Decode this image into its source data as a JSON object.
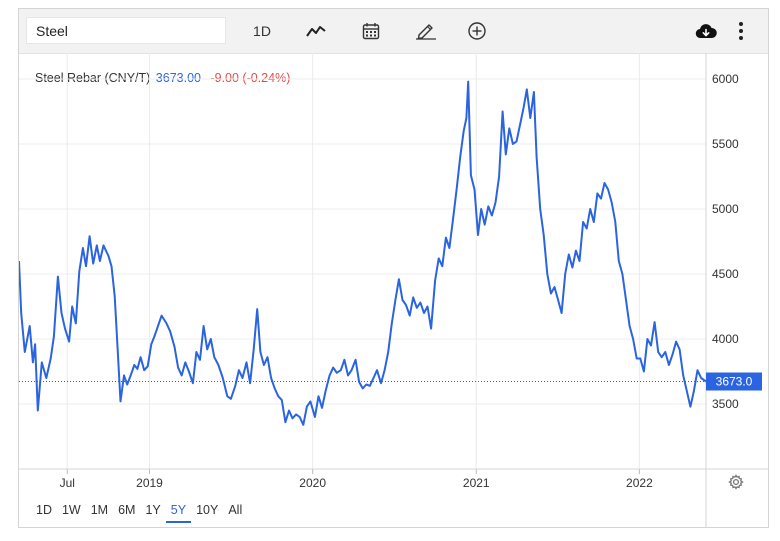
{
  "toolbar": {
    "search_value": "Steel",
    "interval_label": "1D",
    "icons": [
      "line-chart-icon",
      "calendar-icon",
      "draw-pencil-icon",
      "add-compare-icon",
      "download-cloud-icon",
      "more-vertical-icon"
    ]
  },
  "legend": {
    "name": "Steel Rebar (CNY/T)",
    "price": "3673.00",
    "change": "-9.00 (-0.24%)"
  },
  "price_tag": "3673.0",
  "ranges": {
    "items": [
      "1D",
      "1W",
      "1M",
      "6M",
      "1Y",
      "5Y",
      "10Y",
      "All"
    ],
    "selected": "5Y"
  },
  "colors": {
    "line": "#2a64e0",
    "accent": "#2a64e0",
    "negative": "#e04a4a",
    "grid": "#ececec"
  },
  "chart_data": {
    "type": "line",
    "title": "Steel Rebar (CNY/T)",
    "xlabel": "",
    "ylabel": "",
    "grid": true,
    "legend": "top-left",
    "y_axis_position": "right",
    "xlim": [
      "2018-03-15",
      "2022-05-30"
    ],
    "ylim": [
      3000,
      6200
    ],
    "y_ticks": [
      3500,
      4000,
      4500,
      5000,
      5500,
      6000
    ],
    "x_ticks": [
      {
        "date": "2018-07-01",
        "label": "Jul"
      },
      {
        "date": "2019-01-01",
        "label": "2019"
      },
      {
        "date": "2020-01-01",
        "label": "2020"
      },
      {
        "date": "2021-01-01",
        "label": "2021"
      },
      {
        "date": "2022-01-01",
        "label": "2022"
      }
    ],
    "last_value": 3673.0,
    "series": [
      {
        "values": [
          [
            "2018-03-15",
            4600
          ],
          [
            "2018-03-20",
            4200
          ],
          [
            "2018-03-28",
            3900
          ],
          [
            "2018-04-08",
            4100
          ],
          [
            "2018-04-15",
            3820
          ],
          [
            "2018-04-20",
            3960
          ],
          [
            "2018-04-26",
            3450
          ],
          [
            "2018-05-05",
            3820
          ],
          [
            "2018-05-15",
            3700
          ],
          [
            "2018-05-25",
            3850
          ],
          [
            "2018-06-01",
            4020
          ],
          [
            "2018-06-10",
            4480
          ],
          [
            "2018-06-18",
            4200
          ],
          [
            "2018-06-26",
            4080
          ],
          [
            "2018-07-05",
            3980
          ],
          [
            "2018-07-12",
            4250
          ],
          [
            "2018-07-20",
            4120
          ],
          [
            "2018-07-28",
            4520
          ],
          [
            "2018-08-05",
            4700
          ],
          [
            "2018-08-12",
            4560
          ],
          [
            "2018-08-20",
            4790
          ],
          [
            "2018-08-28",
            4580
          ],
          [
            "2018-09-05",
            4720
          ],
          [
            "2018-09-12",
            4600
          ],
          [
            "2018-09-20",
            4720
          ],
          [
            "2018-10-01",
            4640
          ],
          [
            "2018-10-08",
            4560
          ],
          [
            "2018-10-15",
            4330
          ],
          [
            "2018-10-22",
            3900
          ],
          [
            "2018-10-28",
            3520
          ],
          [
            "2018-11-05",
            3720
          ],
          [
            "2018-11-12",
            3650
          ],
          [
            "2018-11-20",
            3720
          ],
          [
            "2018-11-28",
            3800
          ],
          [
            "2018-12-05",
            3770
          ],
          [
            "2018-12-12",
            3860
          ],
          [
            "2018-12-20",
            3760
          ],
          [
            "2018-12-28",
            3790
          ],
          [
            "2019-01-05",
            3960
          ],
          [
            "2019-01-12",
            4020
          ],
          [
            "2019-01-20",
            4100
          ],
          [
            "2019-01-28",
            4180
          ],
          [
            "2019-02-08",
            4120
          ],
          [
            "2019-02-16",
            4060
          ],
          [
            "2019-02-26",
            3940
          ],
          [
            "2019-03-06",
            3780
          ],
          [
            "2019-03-14",
            3720
          ],
          [
            "2019-03-22",
            3820
          ],
          [
            "2019-03-30",
            3750
          ],
          [
            "2019-04-08",
            3660
          ],
          [
            "2019-04-16",
            3900
          ],
          [
            "2019-04-24",
            3840
          ],
          [
            "2019-05-02",
            4100
          ],
          [
            "2019-05-10",
            3920
          ],
          [
            "2019-05-18",
            4000
          ],
          [
            "2019-05-26",
            3860
          ],
          [
            "2019-06-04",
            3800
          ],
          [
            "2019-06-14",
            3700
          ],
          [
            "2019-06-24",
            3560
          ],
          [
            "2019-07-02",
            3540
          ],
          [
            "2019-07-12",
            3640
          ],
          [
            "2019-07-20",
            3760
          ],
          [
            "2019-07-28",
            3700
          ],
          [
            "2019-08-06",
            3820
          ],
          [
            "2019-08-14",
            3660
          ],
          [
            "2019-08-22",
            3920
          ],
          [
            "2019-08-30",
            4230
          ],
          [
            "2019-09-06",
            3900
          ],
          [
            "2019-09-14",
            3800
          ],
          [
            "2019-09-22",
            3860
          ],
          [
            "2019-09-30",
            3700
          ],
          [
            "2019-10-08",
            3620
          ],
          [
            "2019-10-16",
            3560
          ],
          [
            "2019-10-24",
            3530
          ],
          [
            "2019-11-01",
            3360
          ],
          [
            "2019-11-09",
            3450
          ],
          [
            "2019-11-17",
            3390
          ],
          [
            "2019-11-25",
            3420
          ],
          [
            "2019-12-03",
            3400
          ],
          [
            "2019-12-11",
            3340
          ],
          [
            "2019-12-19",
            3480
          ],
          [
            "2019-12-27",
            3520
          ],
          [
            "2020-01-06",
            3400
          ],
          [
            "2020-01-14",
            3560
          ],
          [
            "2020-01-22",
            3470
          ],
          [
            "2020-01-30",
            3600
          ],
          [
            "2020-02-08",
            3720
          ],
          [
            "2020-02-16",
            3780
          ],
          [
            "2020-02-24",
            3740
          ],
          [
            "2020-03-04",
            3760
          ],
          [
            "2020-03-12",
            3840
          ],
          [
            "2020-03-20",
            3720
          ],
          [
            "2020-03-28",
            3760
          ],
          [
            "2020-04-06",
            3840
          ],
          [
            "2020-04-14",
            3670
          ],
          [
            "2020-04-22",
            3620
          ],
          [
            "2020-04-30",
            3650
          ],
          [
            "2020-05-08",
            3640
          ],
          [
            "2020-05-16",
            3700
          ],
          [
            "2020-05-24",
            3760
          ],
          [
            "2020-06-02",
            3660
          ],
          [
            "2020-06-10",
            3760
          ],
          [
            "2020-06-18",
            3900
          ],
          [
            "2020-06-26",
            4120
          ],
          [
            "2020-07-04",
            4300
          ],
          [
            "2020-07-12",
            4460
          ],
          [
            "2020-07-20",
            4300
          ],
          [
            "2020-07-28",
            4260
          ],
          [
            "2020-08-05",
            4180
          ],
          [
            "2020-08-13",
            4320
          ],
          [
            "2020-08-21",
            4240
          ],
          [
            "2020-08-29",
            4280
          ],
          [
            "2020-09-06",
            4200
          ],
          [
            "2020-09-14",
            4250
          ],
          [
            "2020-09-22",
            4080
          ],
          [
            "2020-10-01",
            4450
          ],
          [
            "2020-10-09",
            4620
          ],
          [
            "2020-10-17",
            4560
          ],
          [
            "2020-10-25",
            4780
          ],
          [
            "2020-11-02",
            4700
          ],
          [
            "2020-11-10",
            4920
          ],
          [
            "2020-11-18",
            5150
          ],
          [
            "2020-11-26",
            5400
          ],
          [
            "2020-12-04",
            5600
          ],
          [
            "2020-12-10",
            5700
          ],
          [
            "2020-12-14",
            5980
          ],
          [
            "2020-12-20",
            5260
          ],
          [
            "2020-12-28",
            5150
          ],
          [
            "2021-01-05",
            4800
          ],
          [
            "2021-01-12",
            5000
          ],
          [
            "2021-01-20",
            4880
          ],
          [
            "2021-01-28",
            5020
          ],
          [
            "2021-02-05",
            4950
          ],
          [
            "2021-02-13",
            5050
          ],
          [
            "2021-02-21",
            5250
          ],
          [
            "2021-03-01",
            5750
          ],
          [
            "2021-03-08",
            5420
          ],
          [
            "2021-03-16",
            5620
          ],
          [
            "2021-03-24",
            5500
          ],
          [
            "2021-04-01",
            5520
          ],
          [
            "2021-04-09",
            5650
          ],
          [
            "2021-04-17",
            5780
          ],
          [
            "2021-04-24",
            5920
          ],
          [
            "2021-05-02",
            5700
          ],
          [
            "2021-05-10",
            5900
          ],
          [
            "2021-05-16",
            5400
          ],
          [
            "2021-05-24",
            5000
          ],
          [
            "2021-06-01",
            4800
          ],
          [
            "2021-06-09",
            4500
          ],
          [
            "2021-06-17",
            4350
          ],
          [
            "2021-06-25",
            4400
          ],
          [
            "2021-07-03",
            4300
          ],
          [
            "2021-07-11",
            4200
          ],
          [
            "2021-07-19",
            4500
          ],
          [
            "2021-07-27",
            4650
          ],
          [
            "2021-08-04",
            4550
          ],
          [
            "2021-08-12",
            4680
          ],
          [
            "2021-08-20",
            4600
          ],
          [
            "2021-08-28",
            4900
          ],
          [
            "2021-09-05",
            4850
          ],
          [
            "2021-09-13",
            5000
          ],
          [
            "2021-09-21",
            4900
          ],
          [
            "2021-09-29",
            5120
          ],
          [
            "2021-10-07",
            5080
          ],
          [
            "2021-10-15",
            5200
          ],
          [
            "2021-10-23",
            5150
          ],
          [
            "2021-10-31",
            5050
          ],
          [
            "2021-11-08",
            4900
          ],
          [
            "2021-11-16",
            4600
          ],
          [
            "2021-11-24",
            4500
          ],
          [
            "2021-12-02",
            4300
          ],
          [
            "2021-12-10",
            4100
          ],
          [
            "2021-12-18",
            4000
          ],
          [
            "2021-12-26",
            3850
          ],
          [
            "2022-01-03",
            3850
          ],
          [
            "2022-01-11",
            3750
          ],
          [
            "2022-01-19",
            4000
          ],
          [
            "2022-01-27",
            3950
          ],
          [
            "2022-02-04",
            4130
          ],
          [
            "2022-02-12",
            3900
          ],
          [
            "2022-02-20",
            3860
          ],
          [
            "2022-02-28",
            3900
          ],
          [
            "2022-03-08",
            3800
          ],
          [
            "2022-03-16",
            3880
          ],
          [
            "2022-03-24",
            3980
          ],
          [
            "2022-04-01",
            3920
          ],
          [
            "2022-04-09",
            3720
          ],
          [
            "2022-04-17",
            3600
          ],
          [
            "2022-04-25",
            3480
          ],
          [
            "2022-05-03",
            3600
          ],
          [
            "2022-05-11",
            3760
          ],
          [
            "2022-05-19",
            3700
          ],
          [
            "2022-05-30",
            3673
          ]
        ]
      }
    ]
  }
}
